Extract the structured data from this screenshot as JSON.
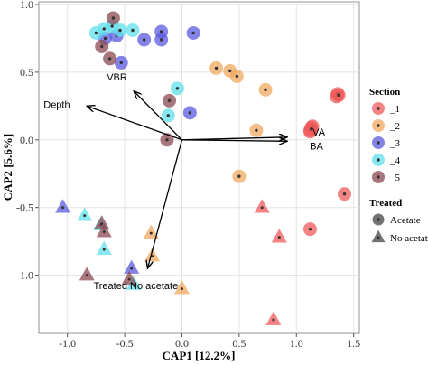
{
  "chart_data": {
    "type": "scatter",
    "xlabel": "CAP1  [12.2%]",
    "ylabel": "CAP2  [5.6%]",
    "xlim": [
      -1.25,
      1.55
    ],
    "ylim": [
      -1.43,
      1.02
    ],
    "xticks": [
      -1.0,
      -0.5,
      0.0,
      0.5,
      1.0,
      1.5
    ],
    "xtick_labels": [
      "-1.0",
      "-0.5",
      "0.0",
      "0.5",
      "1.0",
      "1.5"
    ],
    "yticks": [
      -1.0,
      -0.5,
      0.0,
      0.5,
      1.0
    ],
    "ytick_labels": [
      "-1.0",
      "-0.5",
      "0.0",
      "0.5",
      "1.0"
    ],
    "grid": true,
    "legend_placement": "right",
    "section_legend": {
      "title": "Section",
      "entries": [
        {
          "name": "_1",
          "color": "#F05A5A"
        },
        {
          "name": "_2",
          "color": "#F0A860"
        },
        {
          "name": "_3",
          "color": "#5A5AE0"
        },
        {
          "name": "_4",
          "color": "#60E0EC"
        },
        {
          "name": "_5",
          "color": "#8B4A52"
        }
      ]
    },
    "treated_legend": {
      "title": "Treated",
      "entries": [
        {
          "name": "Acetate",
          "shape": "circle"
        },
        {
          "name": "No acetate",
          "shape": "triangle"
        }
      ]
    },
    "vectors": [
      {
        "name": "Depth",
        "x": -0.83,
        "y": 0.25
      },
      {
        "name": "VBR",
        "x": -0.42,
        "y": 0.36
      },
      {
        "name": "VA",
        "x": 0.92,
        "y": 0.02
      },
      {
        "name": "BA",
        "x": 0.92,
        "y": -0.01
      },
      {
        "name": "Treated No acetate",
        "x": -0.3,
        "y": -0.95
      }
    ],
    "series": [
      {
        "section": "_1",
        "treated": "Acetate",
        "points": [
          [
            1.12,
            0.06
          ],
          [
            1.13,
            0.09
          ],
          [
            1.12,
            0.07
          ],
          [
            1.14,
            0.1
          ],
          [
            1.13,
            0.08
          ],
          [
            1.35,
            0.32
          ],
          [
            1.36,
            0.34
          ],
          [
            1.37,
            0.33
          ],
          [
            1.42,
            -0.4
          ],
          [
            1.12,
            -0.66
          ]
        ]
      },
      {
        "section": "_1",
        "treated": "No acetate",
        "points": [
          [
            0.7,
            -0.5
          ],
          [
            0.85,
            -0.72
          ],
          [
            0.8,
            -1.33
          ]
        ]
      },
      {
        "section": "_2",
        "treated": "Acetate",
        "points": [
          [
            0.3,
            0.53
          ],
          [
            0.42,
            0.51
          ],
          [
            0.48,
            0.47
          ],
          [
            0.73,
            0.37
          ],
          [
            0.65,
            0.07
          ],
          [
            0.5,
            -0.27
          ]
        ]
      },
      {
        "section": "_2",
        "treated": "No acetate",
        "points": [
          [
            -0.27,
            -0.69
          ],
          [
            -0.26,
            -0.86
          ],
          [
            0.0,
            -1.1
          ]
        ]
      },
      {
        "section": "_3",
        "treated": "Acetate",
        "points": [
          [
            -0.57,
            0.77
          ],
          [
            -0.67,
            0.75
          ],
          [
            -0.33,
            0.74
          ],
          [
            -0.18,
            0.8
          ],
          [
            -0.18,
            0.74
          ],
          [
            0.1,
            0.79
          ],
          [
            -0.53,
            0.57
          ],
          [
            0.07,
            0.2
          ]
        ]
      },
      {
        "section": "_3",
        "treated": "No acetate",
        "points": [
          [
            -1.04,
            -0.5
          ],
          [
            -0.44,
            -0.95
          ]
        ]
      },
      {
        "section": "_4",
        "treated": "Acetate",
        "points": [
          [
            -0.68,
            0.82
          ],
          [
            -0.75,
            0.79
          ],
          [
            -0.61,
            0.84
          ],
          [
            -0.54,
            0.81
          ],
          [
            -0.43,
            0.81
          ],
          [
            -0.04,
            0.38
          ],
          [
            -0.12,
            0.18
          ]
        ]
      },
      {
        "section": "_4",
        "treated": "No acetate",
        "points": [
          [
            -0.85,
            -0.56
          ],
          [
            -0.71,
            -0.63
          ],
          [
            -0.68,
            -0.81
          ],
          [
            -0.42,
            -1.07
          ]
        ]
      },
      {
        "section": "_5",
        "treated": "Acetate",
        "points": [
          [
            -0.6,
            0.9
          ],
          [
            -0.7,
            0.69
          ],
          [
            -0.63,
            0.6
          ],
          [
            -0.11,
            0.29
          ],
          [
            -0.13,
            0.0
          ]
        ]
      },
      {
        "section": "_5",
        "treated": "No acetate",
        "points": [
          [
            -0.7,
            -0.62
          ],
          [
            -0.68,
            -0.68
          ],
          [
            -0.83,
            -1.0
          ],
          [
            -0.46,
            -1.03
          ]
        ]
      }
    ]
  }
}
